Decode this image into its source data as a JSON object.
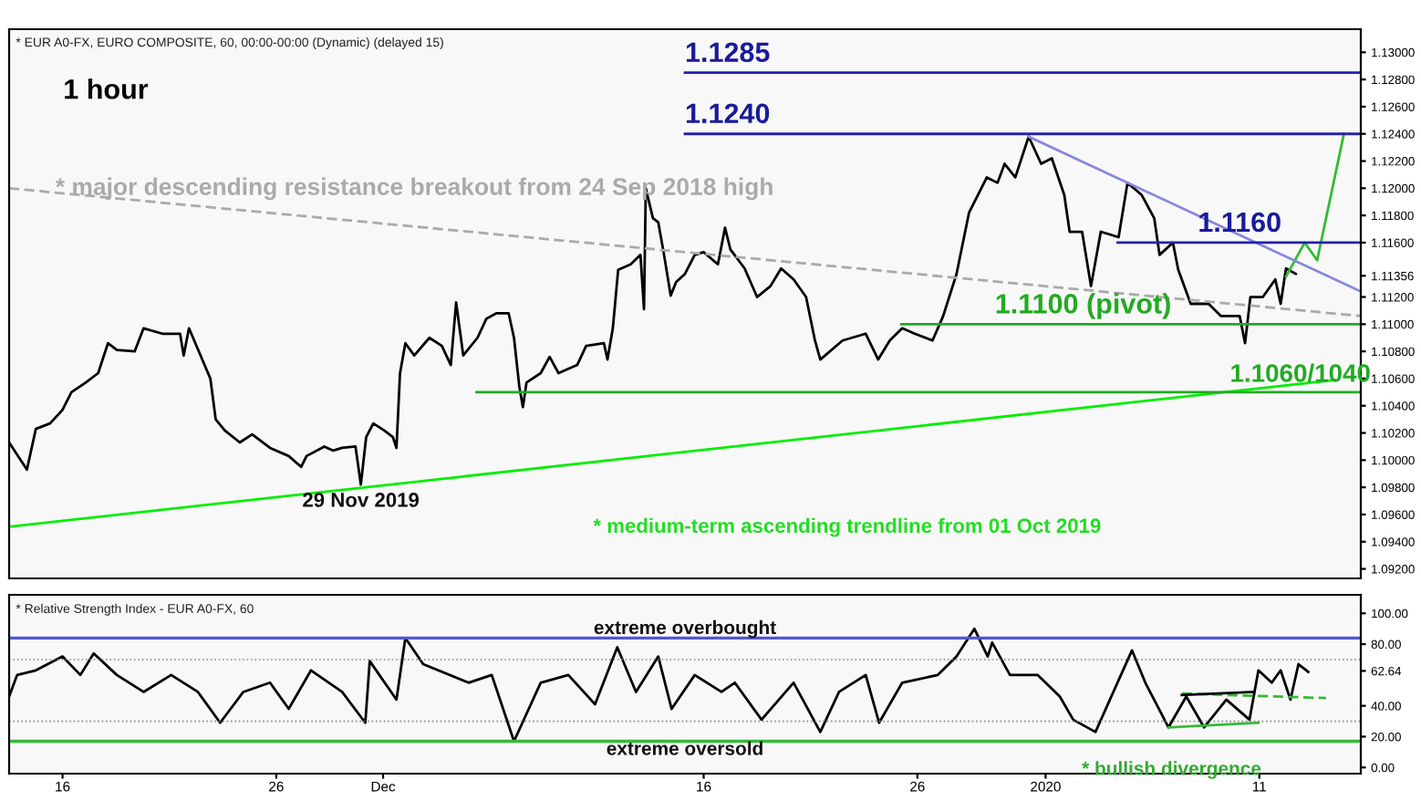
{
  "chart_data": [
    {
      "type": "line",
      "xlim": [
        "2019-11-13T12:00",
        "2020-01-15T18:00"
      ],
      "ylim": [
        1.0913,
        1.1317
      ],
      "tick_labels": "y",
      "yticks": [
        {
          "value": 1.092,
          "label": "1.09200"
        },
        {
          "value": 1.094,
          "label": "1.09400"
        },
        {
          "value": 1.096,
          "label": "1.09600"
        },
        {
          "value": 1.098,
          "label": "1.09800"
        },
        {
          "value": 1.1,
          "label": "1.10000"
        },
        {
          "value": 1.102,
          "label": "1.10200"
        },
        {
          "value": 1.104,
          "label": "1.10400"
        },
        {
          "value": 1.106,
          "label": "1.10600"
        },
        {
          "value": 1.108,
          "label": "1.10800"
        },
        {
          "value": 1.11,
          "label": "1.11000"
        },
        {
          "value": 1.112,
          "label": "1.11200"
        },
        {
          "value": 1.11356,
          "label": "1.11356"
        },
        {
          "value": 1.116,
          "label": "1.11600"
        },
        {
          "value": 1.118,
          "label": "1.11800"
        },
        {
          "value": 1.12,
          "label": "1.12000"
        },
        {
          "value": 1.122,
          "label": "1.12200"
        },
        {
          "value": 1.124,
          "label": "1.12400"
        },
        {
          "value": 1.126,
          "label": "1.12600"
        },
        {
          "value": 1.128,
          "label": "1.12800"
        },
        {
          "value": 1.13,
          "label": "1.13000"
        }
      ],
      "series": [
        {
          "color": "#000000",
          "line_style": "solid",
          "x": [
            "2019-11-13T12:00",
            "2019-11-14T08:00",
            "2019-11-14T18:00",
            "2019-11-15T10:00",
            "2019-11-16T00:00",
            "2019-11-16T10:00",
            "2019-11-17T02:00",
            "2019-11-17T16:00",
            "2019-11-18T03:00",
            "2019-11-18T13:00",
            "2019-11-19T09:00",
            "2019-11-19T19:00",
            "2019-11-20T16:00",
            "2019-11-21T12:00",
            "2019-11-21T16:00",
            "2019-11-21T22:00",
            "2019-11-22T22:00",
            "2019-11-23T04:00",
            "2019-11-23T14:00",
            "2019-11-24T07:00",
            "2019-11-24T21:00",
            "2019-11-25T17:00",
            "2019-11-26T14:00",
            "2019-11-27T04:00",
            "2019-11-27T10:00",
            "2019-11-28T06:00",
            "2019-11-28T16:00",
            "2019-11-29T02:00",
            "2019-11-29T17:00",
            "2019-11-29T23:00",
            "2019-11-30T05:00",
            "2019-11-30T13:00",
            "2019-12-01T01:00",
            "2019-12-01T11:00",
            "2019-12-01T15:00",
            "2019-12-01T19:00",
            "2019-12-02T01:00",
            "2019-12-02T11:00",
            "2019-12-03T04:00",
            "2019-12-03T18:00",
            "2019-12-04T04:00",
            "2019-12-04T10:00",
            "2019-12-04T18:00",
            "2019-12-05T10:00",
            "2019-12-05T20:00",
            "2019-12-06T07:00",
            "2019-12-06T21:00",
            "2019-12-07T03:00",
            "2019-12-07T09:00",
            "2019-12-07T13:00",
            "2019-12-07T17:00",
            "2019-12-08T09:00",
            "2019-12-08T19:00",
            "2019-12-09T05:00",
            "2019-12-10T02:00",
            "2019-12-10T12:00",
            "2019-12-11T08:00",
            "2019-12-11T12:00",
            "2019-12-11T18:00",
            "2019-12-12T00:00",
            "2019-12-12T14:00",
            "2019-12-13T01:00",
            "2019-12-13T05:00",
            "2019-12-13T07:00",
            "2019-12-13T15:00",
            "2019-12-13T21:00",
            "2019-12-14T03:00",
            "2019-12-14T11:00",
            "2019-12-14T17:00",
            "2019-12-15T03:00",
            "2019-12-15T14:00",
            "2019-12-16T00:00",
            "2019-12-16T16:00",
            "2019-12-17T00:00",
            "2019-12-17T06:00",
            "2019-12-17T22:00",
            "2019-12-18T12:00",
            "2019-12-19T03:00",
            "2019-12-19T15:00",
            "2019-12-20T05:00",
            "2019-12-20T19:00",
            "2019-12-21T05:00",
            "2019-12-21T11:00",
            "2019-12-22T12:00",
            "2019-12-23T14:00",
            "2019-12-24T04:00",
            "2019-12-24T17:00",
            "2019-12-25T07:00",
            "2019-12-25T21:00",
            "2019-12-26T17:00",
            "2019-12-27T05:00",
            "2019-12-27T20:00",
            "2019-12-28T10:00",
            "2019-12-29T06:00",
            "2019-12-29T18:00",
            "2019-12-30T02:00",
            "2019-12-30T14:00",
            "2019-12-31T05:00",
            "2019-12-31T19:00",
            "2020-01-01T07:00",
            "2020-01-01T21:00",
            "2020-01-02T03:00",
            "2020-01-02T17:00",
            "2020-01-03T03:00",
            "2020-01-03T14:00",
            "2020-01-04T10:00",
            "2020-01-04T20:00",
            "2020-01-05T12:00",
            "2020-01-06T02:00",
            "2020-01-06T08:00",
            "2020-01-06T23:00",
            "2020-01-07T05:00",
            "2020-01-07T19:00",
            "2020-01-08T15:00",
            "2020-01-09T05:00",
            "2020-01-10T02:00",
            "2020-01-10T08:00",
            "2020-01-10T14:00",
            "2020-01-11T04:00",
            "2020-01-11T18:00",
            "2020-01-12T00:00",
            "2020-01-12T06:00",
            "2020-01-12T17:00"
          ],
          "values": [
            1.1013,
            1.0993,
            1.1023,
            1.1027,
            1.1037,
            1.105,
            1.1057,
            1.1064,
            1.1086,
            1.1081,
            1.108,
            1.1097,
            1.1093,
            1.1093,
            1.1077,
            1.1097,
            1.106,
            1.103,
            1.1022,
            1.1013,
            1.1019,
            1.1009,
            1.1003,
            1.0995,
            1.1003,
            1.101,
            1.1007,
            1.1009,
            1.101,
            1.0982,
            1.1017,
            1.1027,
            1.1022,
            1.1017,
            1.1009,
            1.1064,
            1.1086,
            1.1077,
            1.109,
            1.1084,
            1.107,
            1.1116,
            1.1077,
            1.109,
            1.1104,
            1.1108,
            1.1108,
            1.109,
            1.1054,
            1.1039,
            1.1057,
            1.1064,
            1.1076,
            1.1064,
            1.107,
            1.1084,
            1.1086,
            1.1074,
            1.1097,
            1.114,
            1.1144,
            1.1151,
            1.1111,
            1.12,
            1.1178,
            1.1175,
            1.1153,
            1.1121,
            1.1131,
            1.1137,
            1.1151,
            1.1153,
            1.1144,
            1.1171,
            1.1155,
            1.1141,
            1.112,
            1.1128,
            1.1141,
            1.1133,
            1.112,
            1.1088,
            1.1074,
            1.1088,
            1.1093,
            1.1074,
            1.1088,
            1.1097,
            1.1093,
            1.1088,
            1.1106,
            1.1137,
            1.1182,
            1.1208,
            1.1204,
            1.1218,
            1.1208,
            1.1238,
            1.1218,
            1.1222,
            1.1195,
            1.1168,
            1.1168,
            1.1128,
            1.1168,
            1.1164,
            1.1204,
            1.1195,
            1.1178,
            1.1151,
            1.116,
            1.114,
            1.1115,
            1.1115,
            1.1106,
            1.1106,
            1.1086,
            1.112,
            1.112,
            1.1133,
            1.1115,
            1.1141,
            1.1137
          ]
        },
        {
          "color": "#33bb33",
          "line_style": "solid",
          "x": [
            "2020-01-12T06:00",
            "2020-01-13T03:00",
            "2020-01-13T17:00",
            "2020-01-14T23:00"
          ],
          "values": [
            1.1135,
            1.116,
            1.1147,
            1.124
          ]
        },
        {
          "color": "#aaaaaa",
          "line_style": "dashed",
          "x": [
            "2019-11-13T12:00",
            "2020-01-15T18:00"
          ],
          "values": [
            1.12,
            1.1106
          ]
        },
        {
          "color": "#00ee00",
          "line_style": "solid",
          "x": [
            "2019-11-13T12:00",
            "2020-01-14T13:00"
          ],
          "values": [
            1.0951,
            1.1059
          ]
        },
        {
          "color": "#8888dd",
          "line_style": "solid",
          "x": [
            "2019-12-31T05:00",
            "2020-01-15T18:00"
          ],
          "values": [
            1.1238,
            1.1124
          ]
        },
        {
          "color": "#2222aa",
          "line_style": "solid",
          "x": [
            "2019-12-15T03:00",
            "2020-01-15T18:00"
          ],
          "values": [
            1.1285,
            1.1285
          ]
        },
        {
          "color": "#2222aa",
          "line_style": "solid",
          "x": [
            "2019-12-15T03:00",
            "2020-01-15T18:00"
          ],
          "values": [
            1.124,
            1.124
          ]
        },
        {
          "color": "#2222aa",
          "line_style": "solid",
          "x": [
            "2020-01-04T09:00",
            "2020-01-15T18:00"
          ],
          "values": [
            1.116,
            1.116
          ]
        },
        {
          "color": "#22aa22",
          "line_style": "solid",
          "x": [
            "2019-12-25T06:00",
            "2020-01-15T18:00"
          ],
          "values": [
            1.11,
            1.11
          ]
        },
        {
          "color": "#22aa22",
          "line_style": "solid",
          "x": [
            "2019-12-05T09:00",
            "2020-01-15T18:00"
          ],
          "values": [
            1.105,
            1.105
          ]
        }
      ],
      "annotations": [
        "* EUR A0-FX, EURO COMPOSITE, 60, 00:00-00:00 (Dynamic) (delayed 15)",
        "1 hour",
        "* major descending resistance breakout from 24 Sep 2018 high",
        "* medium-term ascending trendline from 01 Oct 2019",
        {
          "text": "29 Nov 2019",
          "x": "2019-11-29T23:00",
          "y": 1.0982
        },
        {
          "text": "1.1285",
          "x": "2019-12-15T03:00",
          "y": 1.1285
        },
        {
          "text": "1.1240",
          "x": "2019-12-15T03:00",
          "y": 1.124
        },
        {
          "text": "1.1160",
          "x": "2020-01-08T03:00",
          "y": 1.116
        },
        {
          "text": "1.1100 (pivot)",
          "x": "2019-12-29T15:00",
          "y": 1.11
        },
        {
          "text": "1.1060/1040",
          "x": "2020-01-09T15:00",
          "y": 1.105
        }
      ]
    },
    {
      "type": "line",
      "xlim": [
        "2019-11-13T12:00",
        "2020-01-15T18:00"
      ],
      "ylim": [
        -4,
        112
      ],
      "xticks": [
        {
          "value": "2019-11-16",
          "label": "16"
        },
        {
          "value": "2019-11-26",
          "label": "26"
        },
        {
          "value": "2019-12-01",
          "label": "Dec"
        },
        {
          "value": "2019-12-16",
          "label": "16"
        },
        {
          "value": "2019-12-26",
          "label": "26"
        },
        {
          "value": "2020-01-01",
          "label": "2020"
        },
        {
          "value": "2020-01-11",
          "label": "11"
        }
      ],
      "yticks": [
        {
          "value": 0,
          "label": "0.00"
        },
        {
          "value": 20,
          "label": "20.00"
        },
        {
          "value": 40,
          "label": "40.00"
        },
        {
          "value": 62.64,
          "label": "62.64"
        },
        {
          "value": 80,
          "label": "80.00"
        },
        {
          "value": 100,
          "label": "100.00"
        }
      ],
      "ref_lines": [
        {
          "axis": "y",
          "value": 84,
          "label": "extreme overbought",
          "color": "#5555cc",
          "line_style": "solid"
        },
        {
          "axis": "y",
          "value": 17,
          "label": "extreme oversold",
          "color": "#33bb33",
          "line_style": "solid"
        },
        {
          "axis": "y",
          "value": 70,
          "color": "#888888",
          "line_style": "dotted"
        },
        {
          "axis": "y",
          "value": 30,
          "color": "#888888",
          "line_style": "dotted"
        }
      ],
      "series": [
        {
          "color": "#000000",
          "line_style": "solid",
          "x": [
            "2019-11-13T12:00",
            "2019-11-13T21:00",
            "2019-11-14T18:00",
            "2019-11-16T00:00",
            "2019-11-16T20:00",
            "2019-11-17T11:00",
            "2019-11-18T13:00",
            "2019-11-19T19:00",
            "2019-11-21T02:00",
            "2019-11-22T08:00",
            "2019-11-23T09:00",
            "2019-11-24T11:00",
            "2019-11-25T17:00",
            "2019-11-26T14:00",
            "2019-11-27T15:00",
            "2019-11-29T02:00",
            "2019-11-30T04:00",
            "2019-11-30T09:00",
            "2019-12-01T15:00",
            "2019-12-02T01:00",
            "2019-12-02T21:00",
            "2019-12-05T00:00",
            "2019-12-06T02:00",
            "2019-12-07T03:00",
            "2019-12-08T09:00",
            "2019-12-09T16:00",
            "2019-12-10T22:00",
            "2019-12-11T23:00",
            "2019-12-12T20:00",
            "2019-12-13T21:00",
            "2019-12-14T12:00",
            "2019-12-15T14:00",
            "2019-12-16T20:00",
            "2019-12-17T11:00",
            "2019-12-18T17:00",
            "2019-12-20T05:00",
            "2019-12-21T11:00",
            "2019-12-22T08:00",
            "2019-12-23T14:00",
            "2019-12-24T05:00",
            "2019-12-25T07:00",
            "2019-12-26T23:00",
            "2019-12-27T20:00",
            "2019-12-28T16:00",
            "2019-12-29T07:00",
            "2019-12-29T12:00",
            "2019-12-30T08:00",
            "2019-12-31T15:00",
            "2020-01-01T16:00",
            "2020-01-02T07:00",
            "2020-01-03T08:00",
            "2020-01-05T01:00",
            "2020-01-05T16:00",
            "2020-01-06T18:00",
            "2020-01-07T14:00",
            "2020-01-08T10:00",
            "2020-01-09T11:00",
            "2020-01-10T13:00",
            "2020-01-10T23:00",
            "2020-01-11T14:00",
            "2020-01-12T00:00",
            "2020-01-12T11:00",
            "2020-01-12T20:00",
            "2020-01-13T07:00"
          ],
          "values": [
            46,
            60,
            63,
            72,
            60,
            74,
            60,
            49,
            60,
            49,
            29,
            49,
            55,
            38,
            63,
            49,
            29,
            69,
            44,
            84,
            67,
            55,
            60,
            17,
            55,
            60,
            41,
            78,
            49,
            72,
            38,
            60,
            49,
            55,
            31,
            55,
            23,
            49,
            60,
            29,
            55,
            60,
            72,
            90,
            72,
            81,
            60,
            60,
            46,
            31,
            23,
            76,
            55,
            26,
            46,
            26,
            44,
            31,
            63,
            55,
            63,
            44,
            67,
            62
          ]
        },
        {
          "color": "#33bb33",
          "line_style": "solid",
          "x": [
            "2020-01-06T18:00",
            "2020-01-10T23:00"
          ],
          "values": [
            26,
            29
          ]
        },
        {
          "color": "#33bb33",
          "line_style": "dashed",
          "x": [
            "2020-01-07T09:00",
            "2020-01-14T03:00"
          ],
          "values": [
            48,
            45
          ]
        },
        {
          "color": "#000000",
          "line_style": "solid",
          "x": [
            "2020-01-07T09:00",
            "2020-01-10T18:00"
          ],
          "values": [
            47,
            49
          ]
        }
      ],
      "annotations": [
        "* Relative Strength Index - EUR A0-FX, 60",
        "* bullish divergence"
      ]
    }
  ]
}
